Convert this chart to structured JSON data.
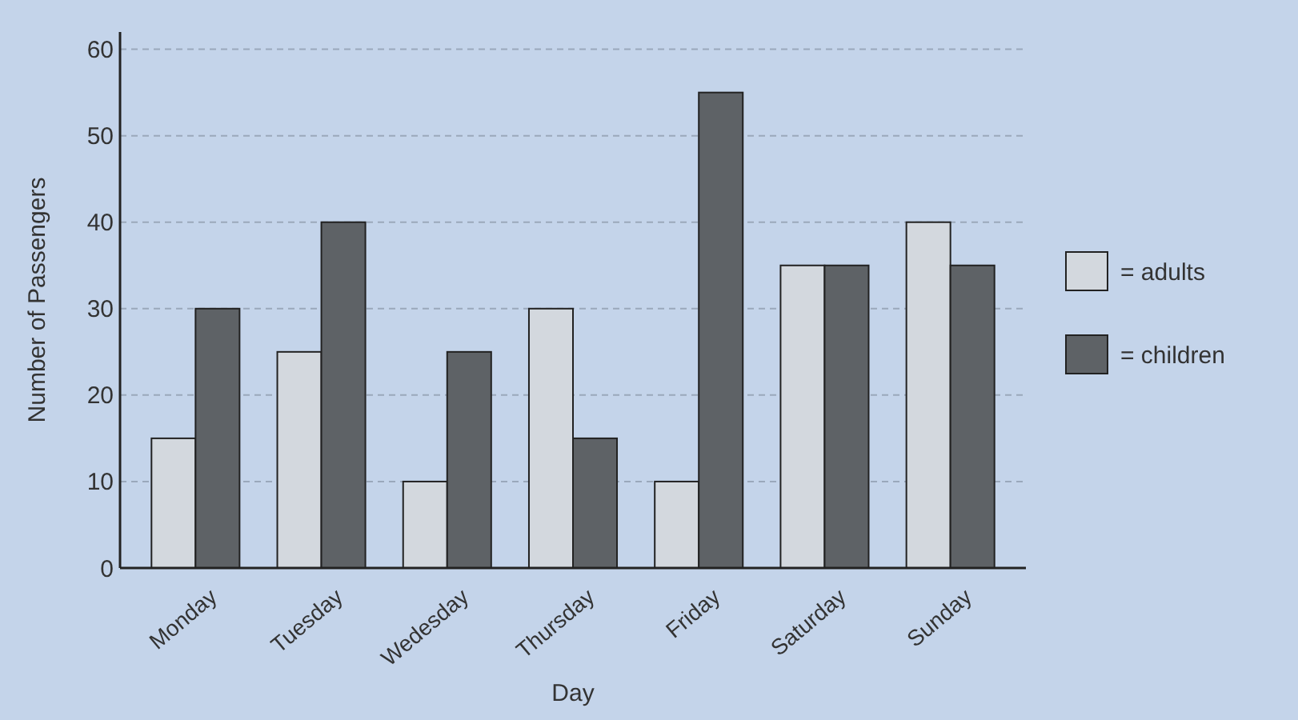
{
  "chart_data": {
    "type": "bar",
    "xlabel": "Day",
    "ylabel": "Number of Passengers",
    "categories": [
      "Monday",
      "Tuesday",
      "Wedesday",
      "Thursday",
      "Friday",
      "Saturday",
      "Sunday"
    ],
    "series": [
      {
        "name": "= adults",
        "color": "#d3d8de",
        "values": [
          15,
          25,
          10,
          30,
          10,
          35,
          40
        ]
      },
      {
        "name": "= children",
        "color": "#5e6266",
        "values": [
          30,
          40,
          25,
          15,
          55,
          35,
          35
        ]
      }
    ],
    "ylim": [
      0,
      62
    ],
    "yticks": [
      0,
      10,
      20,
      30,
      40,
      50,
      60
    ],
    "grid": "y",
    "legend": "right"
  }
}
